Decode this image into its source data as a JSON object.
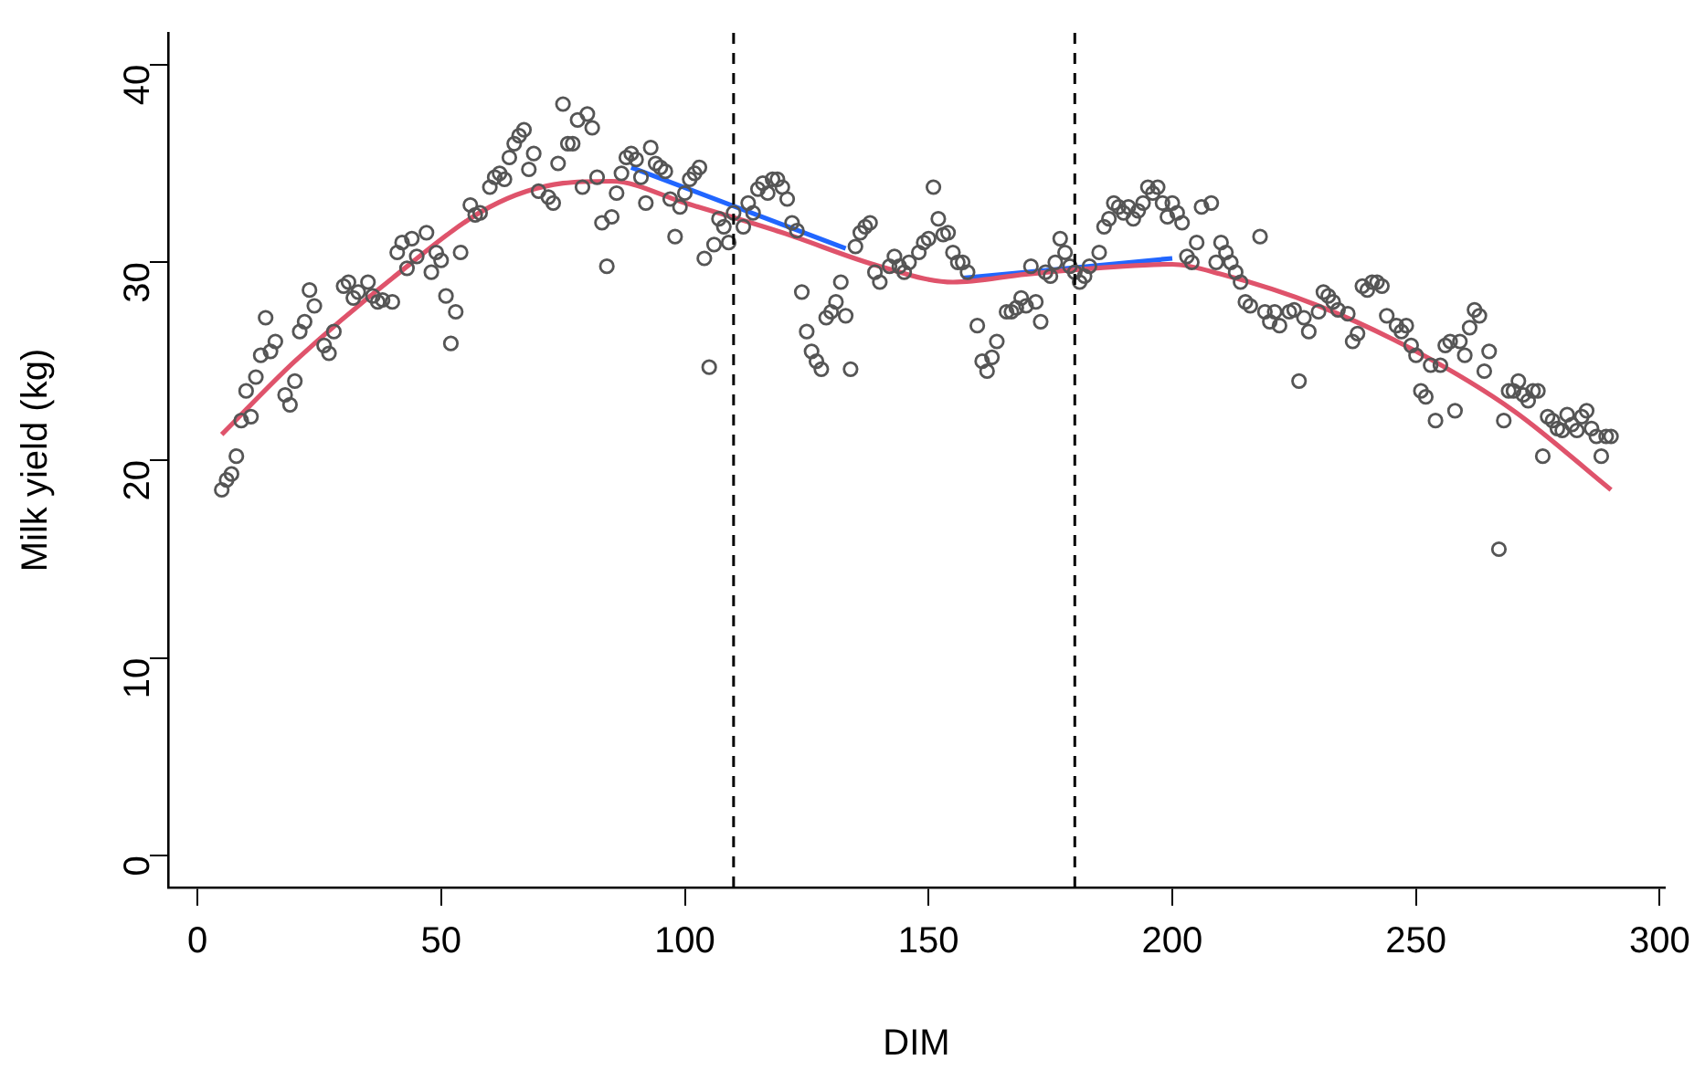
{
  "chart_data": {
    "type": "scatter",
    "xlabel": "DIM",
    "ylabel": "Milk yield (kg)",
    "xlim": [
      -6,
      301
    ],
    "ylim": [
      -1.6,
      41.6
    ],
    "xticks": [
      0,
      50,
      100,
      150,
      200,
      250,
      300
    ],
    "yticks": [
      0,
      10,
      20,
      30,
      40
    ],
    "grid": false,
    "legend": false,
    "series": [
      {
        "marker": "circle",
        "color": "#555555",
        "x": [
          5,
          6,
          7,
          8,
          9,
          10,
          11,
          12,
          13,
          14,
          15,
          16,
          18,
          19,
          20,
          21,
          22,
          23,
          24,
          26,
          27,
          28,
          30,
          31,
          32,
          33,
          35,
          36,
          37,
          38,
          40,
          41,
          42,
          43,
          44,
          45,
          47,
          48,
          49,
          50,
          51,
          52,
          53,
          54,
          56,
          57,
          58,
          60,
          61,
          62,
          63,
          64,
          65,
          66,
          67,
          68,
          69,
          70,
          72,
          73,
          74,
          75,
          76,
          77,
          78,
          79,
          80,
          81,
          82,
          83,
          84,
          85,
          86,
          87,
          88,
          89,
          90,
          91,
          92,
          93,
          94,
          95,
          96,
          97,
          98,
          99,
          100,
          101,
          102,
          103,
          104,
          105,
          106,
          107,
          108,
          109,
          110,
          112,
          113,
          114,
          115,
          116,
          117,
          118,
          119,
          120,
          121,
          122,
          123,
          124,
          125,
          126,
          127,
          128,
          129,
          130,
          131,
          132,
          133,
          134,
          135,
          136,
          137,
          138,
          139,
          140,
          142,
          143,
          144,
          145,
          146,
          148,
          149,
          150,
          151,
          152,
          153,
          154,
          155,
          156,
          157,
          158,
          160,
          161,
          162,
          163,
          164,
          166,
          167,
          168,
          169,
          170,
          171,
          172,
          173,
          174,
          175,
          176,
          177,
          178,
          179,
          180,
          181,
          182,
          183,
          185,
          186,
          187,
          188,
          189,
          190,
          191,
          192,
          193,
          194,
          195,
          196,
          197,
          198,
          199,
          200,
          201,
          202,
          203,
          204,
          205,
          206,
          208,
          209,
          210,
          211,
          212,
          213,
          214,
          215,
          216,
          218,
          219,
          220,
          221,
          222,
          224,
          225,
          226,
          227,
          228,
          230,
          231,
          232,
          233,
          234,
          236,
          237,
          238,
          239,
          240,
          241,
          242,
          243,
          244,
          246,
          247,
          248,
          249,
          250,
          251,
          252,
          253,
          254,
          255,
          256,
          257,
          258,
          259,
          260,
          261,
          262,
          263,
          264,
          265,
          267,
          268,
          269,
          270,
          271,
          272,
          273,
          274,
          275,
          276,
          277,
          278,
          279,
          280,
          281,
          282,
          283,
          284,
          285,
          286,
          287,
          288,
          289,
          290
        ],
        "values": [
          18.5,
          19,
          19.3,
          20.2,
          22,
          23.5,
          22.2,
          24.2,
          25.3,
          27.2,
          25.5,
          26,
          23.3,
          22.8,
          24,
          26.5,
          27,
          28.6,
          27.8,
          25.8,
          25.4,
          26.5,
          28.8,
          29,
          28.2,
          28.5,
          29,
          28.3,
          28,
          28.1,
          28,
          30.5,
          31,
          29.7,
          31.2,
          30.3,
          31.5,
          29.5,
          30.5,
          30.1,
          28.3,
          25.9,
          27.5,
          30.5,
          32.9,
          32.4,
          32.5,
          33.8,
          34.3,
          34.5,
          34.2,
          35.3,
          36,
          36.4,
          36.7,
          34.7,
          35.5,
          33.6,
          33.3,
          33,
          35,
          38,
          36,
          36,
          37.2,
          33.8,
          37.5,
          36.8,
          34.3,
          32,
          29.8,
          32.3,
          33.5,
          34.5,
          35.3,
          35.5,
          35.2,
          34.3,
          33,
          35.8,
          35,
          34.8,
          34.6,
          33.2,
          31.3,
          32.8,
          33.5,
          34.2,
          34.5,
          34.8,
          30.2,
          24.7,
          30.9,
          32.2,
          31.8,
          31,
          32.5,
          31.8,
          33,
          32.5,
          33.7,
          34,
          33.5,
          34.2,
          34.2,
          33.8,
          33.2,
          32,
          31.6,
          28.5,
          26.5,
          25.5,
          25,
          24.6,
          27.2,
          27.5,
          28,
          29,
          27.3,
          24.6,
          30.8,
          31.5,
          31.8,
          32,
          29.5,
          29,
          29.8,
          30.3,
          29.8,
          29.5,
          30,
          30.5,
          31,
          31.2,
          33.8,
          32.2,
          31.4,
          31.5,
          30.5,
          30,
          30,
          29.5,
          26.8,
          25,
          24.5,
          25.2,
          26,
          27.5,
          27.5,
          27.7,
          28.2,
          27.8,
          29.8,
          28,
          27,
          29.5,
          29.3,
          30,
          31.2,
          30.5,
          29.8,
          29.5,
          29,
          29.3,
          29.8,
          30.5,
          31.8,
          32.2,
          33,
          32.8,
          32.5,
          32.8,
          32.2,
          32.6,
          33,
          33.8,
          33.5,
          33.8,
          33,
          32.3,
          33,
          32.5,
          32,
          30.3,
          30,
          31,
          32.8,
          33,
          30,
          31,
          30.5,
          30,
          29.5,
          29,
          28,
          27.8,
          31.3,
          27.5,
          27,
          27.5,
          26.8,
          27.5,
          27.6,
          24,
          27.2,
          26.5,
          27.5,
          28.5,
          28.3,
          28,
          27.6,
          27.4,
          26,
          26.4,
          28.8,
          28.6,
          29,
          29,
          28.8,
          27.3,
          26.8,
          26.5,
          26.8,
          25.8,
          25.3,
          23.5,
          23.2,
          24.8,
          22,
          24.8,
          25.8,
          26,
          22.5,
          26,
          25.3,
          26.7,
          27.6,
          27.3,
          24.5,
          25.5,
          15.5,
          22,
          23.5,
          23.5,
          24,
          23.3,
          23,
          23.5,
          23.5,
          20.2,
          22.2,
          22,
          21.6,
          21.5,
          22.3,
          21.8,
          21.5,
          22.2,
          22.5,
          21.6,
          21.2,
          20.2,
          21.2,
          21.2
        ]
      },
      {
        "type": "line",
        "marker": "none",
        "color": "#df536b",
        "x": [
          5,
          20,
          40,
          60,
          75,
          85,
          100,
          120,
          140,
          155,
          170,
          190,
          200,
          210,
          230,
          250,
          270,
          290
        ],
        "values": [
          21.3,
          25,
          29.2,
          32.8,
          34,
          34.1,
          33,
          31.5,
          29.8,
          29,
          29.4,
          29.8,
          29.9,
          29.4,
          27.8,
          25.5,
          22.5,
          18.5
        ]
      },
      {
        "type": "line",
        "marker": "none",
        "color": "#2166ff",
        "x": [
          89,
          133
        ],
        "values": [
          34.8,
          30.7
        ]
      },
      {
        "type": "line",
        "marker": "none",
        "color": "#2166ff",
        "x": [
          157,
          200
        ],
        "values": [
          29.2,
          30.2
        ]
      }
    ],
    "ref_lines": [
      {
        "axis": "x",
        "value": 110,
        "line_style": "dashed",
        "color": "#000000"
      },
      {
        "axis": "x",
        "value": 180,
        "line_style": "dashed",
        "color": "#000000"
      }
    ]
  }
}
